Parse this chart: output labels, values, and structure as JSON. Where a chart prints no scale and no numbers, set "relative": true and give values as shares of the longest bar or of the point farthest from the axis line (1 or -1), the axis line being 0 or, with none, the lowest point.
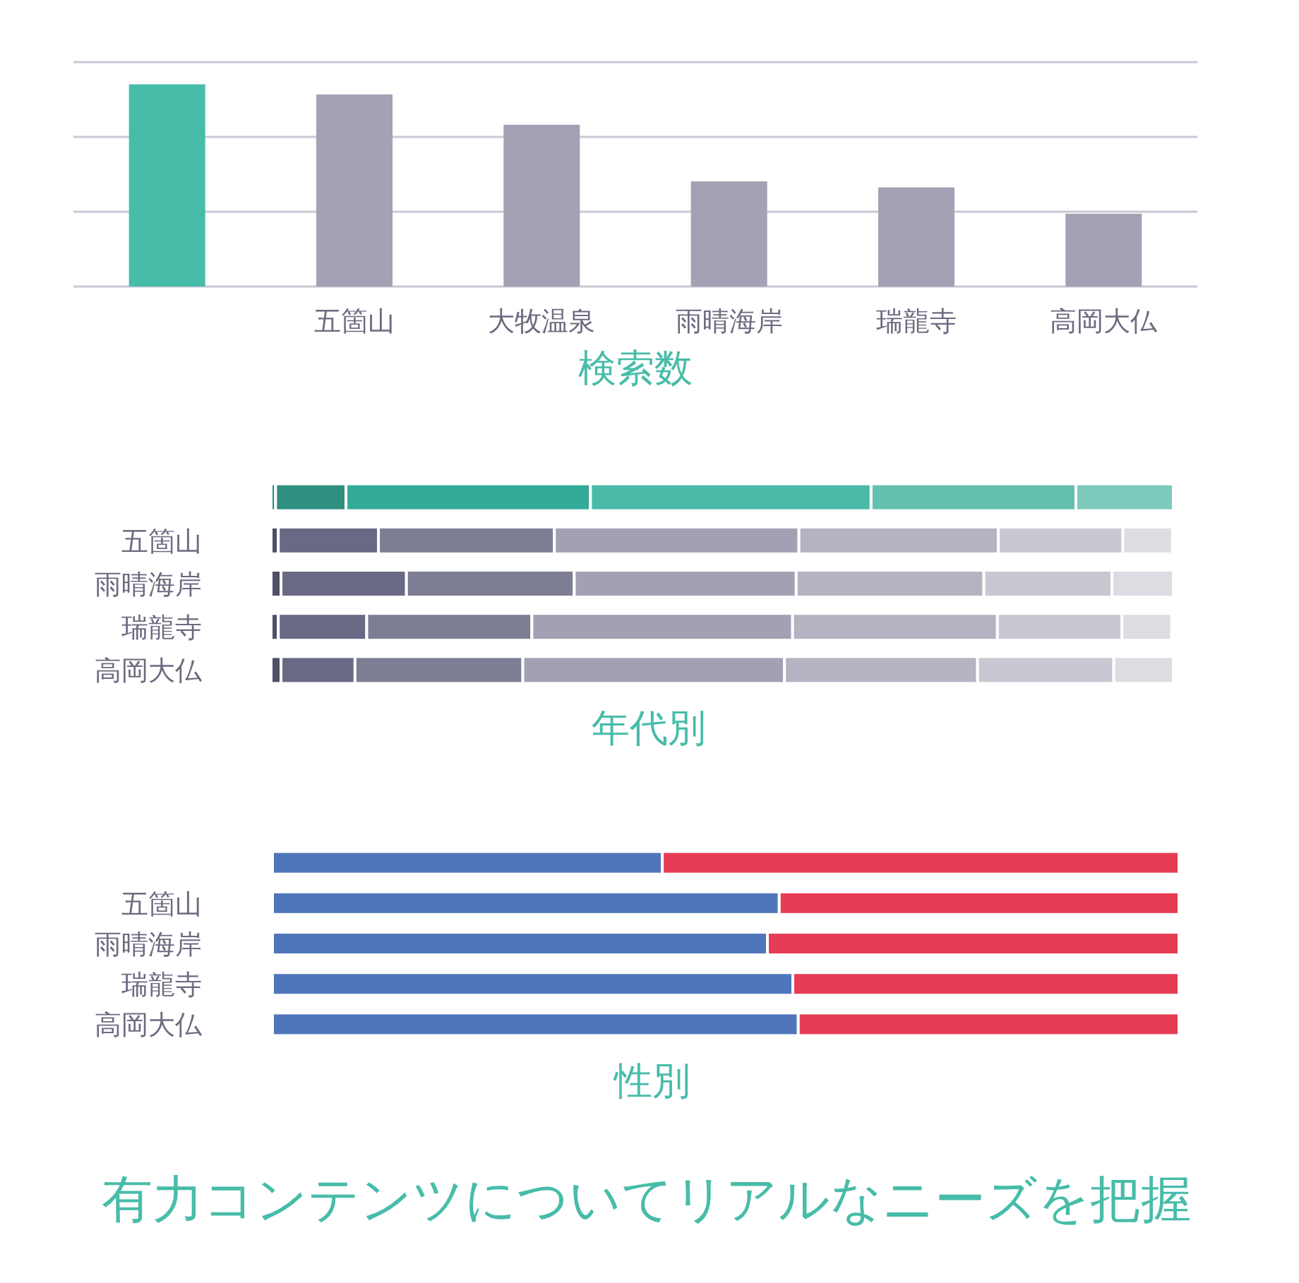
{
  "chart_data": [
    {
      "type": "bar",
      "xlabel": "検索数",
      "categories": [
        null,
        "五箇山",
        "大牧温泉",
        "雨晴海岸",
        "瑞龍寺",
        "高岡大仏"
      ],
      "values": [
        1,
        0.95,
        0.8,
        0.52,
        0.49,
        0.36
      ],
      "colors": [
        "#47bca9",
        "#a3a1b4",
        "#a3a1b4",
        "#a3a1b4",
        "#a3a1b4",
        "#a3a1b4"
      ],
      "relative": true,
      "ref_lines": [
        {
          "axis": "y",
          "value": 0.37,
          "color": "#c9c8d4"
        },
        {
          "axis": "y",
          "value": 0.74,
          "color": "#c9c8d4"
        },
        {
          "axis": "y",
          "value": 1.11,
          "color": "#c9c8d4"
        }
      ]
    },
    {
      "type": "bar",
      "title": "年代別",
      "orientation": "horizontal",
      "stacked": true,
      "relative": true,
      "categories": [
        null,
        "五箇山",
        "雨晴海岸",
        "瑞龍寺",
        "高岡大仏"
      ],
      "series": [
        {
          "colors": [
            "#2f8f80",
            "#4f4f66",
            "#4f4f66",
            "#4f4f66",
            "#4f4f66"
          ],
          "values": [
            0.005,
            0.008,
            0.011,
            0.008,
            0.011
          ]
        },
        {
          "colors": [
            "#2f8f80",
            "#696985",
            "#696985",
            "#696985",
            "#696985"
          ],
          "values": [
            0.078,
            0.111,
            0.139,
            0.098,
            0.082
          ]
        },
        {
          "colors": [
            "#33ab99",
            "#7d7d93",
            "#7d7d93",
            "#7d7d93",
            "#7d7d93"
          ],
          "values": [
            0.271,
            0.195,
            0.186,
            0.183,
            0.186
          ]
        },
        {
          "colors": [
            "#4abba9",
            "#a2a1b4",
            "#a2a1b4",
            "#a2a1b4",
            "#a2a1b4"
          ],
          "values": [
            0.311,
            0.271,
            0.246,
            0.289,
            0.29
          ]
        },
        {
          "colors": [
            "#63c0ae",
            "#b4b3c2",
            "#b4b3c2",
            "#b4b3c2",
            "#b4b3c2"
          ],
          "values": [
            0.227,
            0.221,
            0.208,
            0.227,
            0.214
          ]
        },
        {
          "colors": [
            "#7ccabb",
            "#c8c8d2",
            "#c8c8d2",
            "#c8c8d2",
            "#c8c8d2"
          ],
          "values": [
            0.108,
            0.138,
            0.142,
            0.138,
            0.151
          ]
        },
        {
          "colors": [
            "#7ccabb",
            "#dcdce2",
            "#dcdce2",
            "#dcdce2",
            "#dcdce2"
          ],
          "values": [
            0,
            0.055,
            0.068,
            0.055,
            0.066
          ]
        }
      ]
    },
    {
      "type": "bar",
      "title": "性別",
      "orientation": "horizontal",
      "stacked": true,
      "relative": true,
      "categories": [
        null,
        "五箇山",
        "雨晴海岸",
        "瑞龍寺",
        "高岡大仏"
      ],
      "series": [
        {
          "color": "#4f76bb",
          "values": [
            0.43,
            0.559,
            0.546,
            0.574,
            0.58
          ]
        },
        {
          "color": "#e63c55",
          "values": [
            0.57,
            0.441,
            0.454,
            0.426,
            0.42
          ]
        }
      ],
      "annotations": [
        "有力コンテンツについてリアルなニーズを把握"
      ]
    }
  ]
}
